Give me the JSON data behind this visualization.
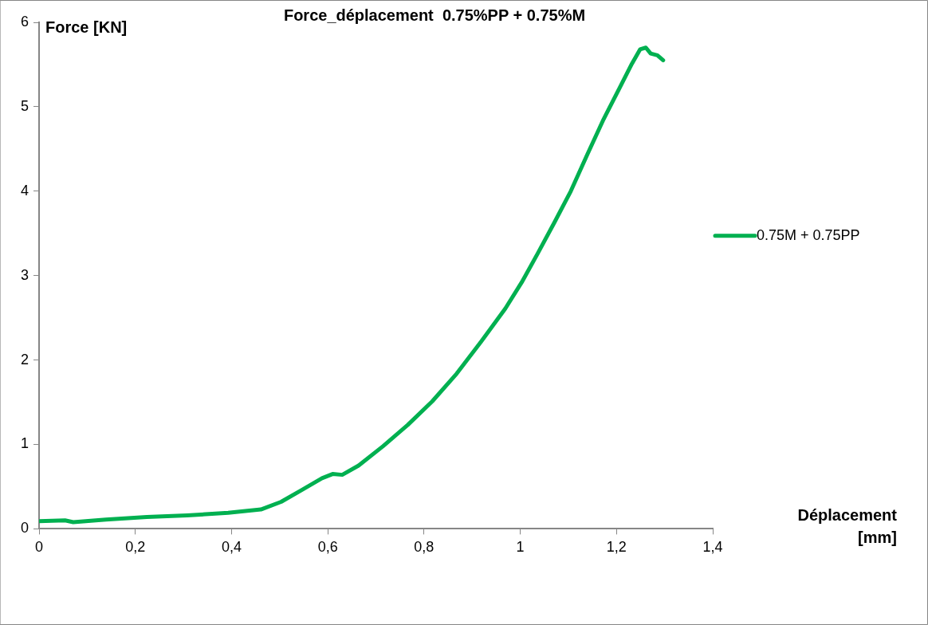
{
  "chart_data": {
    "type": "line",
    "title": "Force_déplacement  0.75%PP + 0.75%M",
    "xlabel": "Déplacement [mm]",
    "ylabel": "Force [KN]",
    "xlim": [
      0,
      1.4
    ],
    "xticks": [
      {
        "value": 0,
        "label": "0"
      },
      {
        "value": 0.2,
        "label": "0,2"
      },
      {
        "value": 0.4,
        "label": "0,4"
      },
      {
        "value": 0.6,
        "label": "0,6"
      },
      {
        "value": 0.8,
        "label": "0,8"
      },
      {
        "value": 1,
        "label": "1"
      },
      {
        "value": 1.2,
        "label": "1,2"
      },
      {
        "value": 1.4,
        "label": "1,4"
      }
    ],
    "ylim": [
      0,
      6
    ],
    "yticks": [
      0,
      1,
      2,
      3,
      4,
      5,
      6
    ],
    "grid": false,
    "legend": "right",
    "marker": "none",
    "line_style": "solid",
    "series": [
      {
        "name": "0.75M + 0.75PP",
        "color": "#00b050",
        "x": [
          0,
          0.054,
          0.071,
          0.139,
          0.224,
          0.308,
          0.393,
          0.461,
          0.503,
          0.546,
          0.588,
          0.61,
          0.63,
          0.664,
          0.715,
          0.766,
          0.817,
          0.868,
          0.919,
          0.969,
          1.003,
          1.037,
          1.071,
          1.105,
          1.139,
          1.173,
          1.207,
          1.232,
          1.249,
          1.261,
          1.271,
          1.285,
          1.297
        ],
        "values": [
          0.09,
          0.1,
          0.08,
          0.11,
          0.14,
          0.16,
          0.19,
          0.23,
          0.32,
          0.46,
          0.6,
          0.65,
          0.64,
          0.75,
          0.98,
          1.23,
          1.51,
          1.84,
          2.22,
          2.61,
          2.92,
          3.27,
          3.63,
          4.0,
          4.43,
          4.85,
          5.23,
          5.51,
          5.68,
          5.7,
          5.63,
          5.61,
          5.55
        ]
      }
    ]
  }
}
